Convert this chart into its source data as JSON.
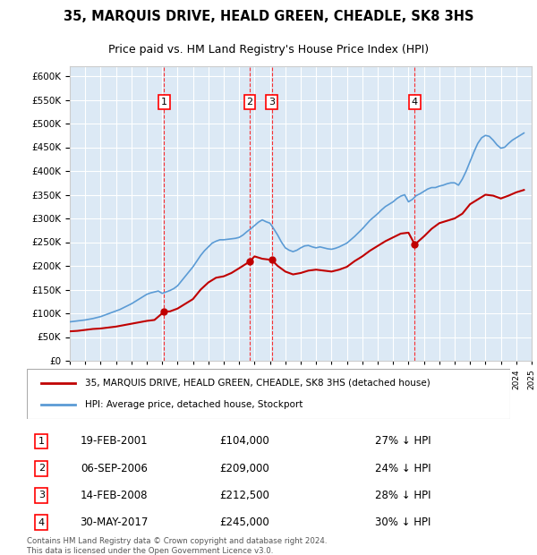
{
  "title": "35, MARQUIS DRIVE, HEALD GREEN, CHEADLE, SK8 3HS",
  "subtitle": "Price paid vs. HM Land Registry's House Price Index (HPI)",
  "ylim": [
    0,
    620000
  ],
  "yticks": [
    0,
    50000,
    100000,
    150000,
    200000,
    250000,
    300000,
    350000,
    400000,
    450000,
    500000,
    550000,
    600000
  ],
  "xlabel_start_year": 1995,
  "xlabel_end_year": 2025,
  "background_color": "#dce9f5",
  "plot_bg_color": "#dce9f5",
  "hpi_line_color": "#5b9bd5",
  "price_line_color": "#c00000",
  "grid_color": "#ffffff",
  "sale_dates": [
    "2001-02-19",
    "2006-09-06",
    "2008-02-14",
    "2017-05-30"
  ],
  "sale_prices": [
    104000,
    209000,
    212500,
    245000
  ],
  "sale_labels": [
    "1",
    "2",
    "3",
    "4"
  ],
  "sale_hpi_pct": [
    "27% ↓ HPI",
    "24% ↓ HPI",
    "28% ↓ HPI",
    "30% ↓ HPI"
  ],
  "sale_dates_str": [
    "19-FEB-2001",
    "06-SEP-2006",
    "14-FEB-2008",
    "30-MAY-2017"
  ],
  "sale_prices_str": [
    "£104,000",
    "£209,000",
    "£212,500",
    "£245,000"
  ],
  "legend_line1": "35, MARQUIS DRIVE, HEALD GREEN, CHEADLE, SK8 3HS (detached house)",
  "legend_line2": "HPI: Average price, detached house, Stockport",
  "footer": "Contains HM Land Registry data © Crown copyright and database right 2024.\nThis data is licensed under the Open Government Licence v3.0.",
  "hpi_data_years": [
    1995.0,
    1995.25,
    1995.5,
    1995.75,
    1996.0,
    1996.25,
    1996.5,
    1996.75,
    1997.0,
    1997.25,
    1997.5,
    1997.75,
    1998.0,
    1998.25,
    1998.5,
    1998.75,
    1999.0,
    1999.25,
    1999.5,
    1999.75,
    2000.0,
    2000.25,
    2000.5,
    2000.75,
    2001.0,
    2001.25,
    2001.5,
    2001.75,
    2002.0,
    2002.25,
    2002.5,
    2002.75,
    2003.0,
    2003.25,
    2003.5,
    2003.75,
    2004.0,
    2004.25,
    2004.5,
    2004.75,
    2005.0,
    2005.25,
    2005.5,
    2005.75,
    2006.0,
    2006.25,
    2006.5,
    2006.75,
    2007.0,
    2007.25,
    2007.5,
    2007.75,
    2008.0,
    2008.25,
    2008.5,
    2008.75,
    2009.0,
    2009.25,
    2009.5,
    2009.75,
    2010.0,
    2010.25,
    2010.5,
    2010.75,
    2011.0,
    2011.25,
    2011.5,
    2011.75,
    2012.0,
    2012.25,
    2012.5,
    2012.75,
    2013.0,
    2013.25,
    2013.5,
    2013.75,
    2014.0,
    2014.25,
    2014.5,
    2014.75,
    2015.0,
    2015.25,
    2015.5,
    2015.75,
    2016.0,
    2016.25,
    2016.5,
    2016.75,
    2017.0,
    2017.25,
    2017.5,
    2017.75,
    2018.0,
    2018.25,
    2018.5,
    2018.75,
    2019.0,
    2019.25,
    2019.5,
    2019.75,
    2020.0,
    2020.25,
    2020.5,
    2020.75,
    2021.0,
    2021.25,
    2021.5,
    2021.75,
    2022.0,
    2022.25,
    2022.5,
    2022.75,
    2023.0,
    2023.25,
    2023.5,
    2023.75,
    2024.0,
    2024.25,
    2024.5
  ],
  "hpi_data_values": [
    82000,
    83000,
    84000,
    85000,
    86000,
    87500,
    89000,
    91000,
    93000,
    96000,
    99000,
    102000,
    105000,
    108000,
    112000,
    116000,
    120000,
    125000,
    130000,
    135000,
    140000,
    143000,
    145000,
    147000,
    142000,
    145000,
    148000,
    152000,
    158000,
    168000,
    178000,
    188000,
    198000,
    210000,
    222000,
    232000,
    240000,
    248000,
    252000,
    255000,
    255000,
    256000,
    257000,
    258000,
    260000,
    265000,
    272000,
    278000,
    285000,
    292000,
    297000,
    293000,
    290000,
    278000,
    265000,
    250000,
    238000,
    233000,
    230000,
    233000,
    238000,
    242000,
    243000,
    240000,
    238000,
    240000,
    238000,
    236000,
    235000,
    237000,
    240000,
    244000,
    248000,
    255000,
    262000,
    270000,
    278000,
    287000,
    296000,
    303000,
    310000,
    318000,
    325000,
    330000,
    335000,
    342000,
    347000,
    350000,
    335000,
    340000,
    348000,
    352000,
    357000,
    362000,
    365000,
    365000,
    368000,
    370000,
    373000,
    375000,
    375000,
    370000,
    383000,
    400000,
    420000,
    440000,
    458000,
    470000,
    475000,
    473000,
    465000,
    455000,
    448000,
    450000,
    458000,
    465000,
    470000,
    475000,
    480000
  ],
  "price_data_years": [
    1995.0,
    1995.5,
    1996.0,
    1996.5,
    1997.0,
    1997.5,
    1998.0,
    1998.5,
    1999.0,
    1999.5,
    2000.0,
    2000.5,
    2001.146,
    2001.5,
    2002.0,
    2002.5,
    2003.0,
    2003.5,
    2004.0,
    2004.5,
    2005.0,
    2005.5,
    2006.0,
    2006.68,
    2007.0,
    2007.5,
    2008.12,
    2008.5,
    2009.0,
    2009.5,
    2010.0,
    2010.5,
    2011.0,
    2011.5,
    2012.0,
    2012.5,
    2013.0,
    2013.5,
    2014.0,
    2014.5,
    2015.0,
    2015.5,
    2016.0,
    2016.5,
    2017.0,
    2017.41,
    2018.0,
    2018.5,
    2019.0,
    2019.5,
    2020.0,
    2020.5,
    2021.0,
    2021.5,
    2022.0,
    2022.5,
    2023.0,
    2023.5,
    2024.0,
    2024.5
  ],
  "price_data_values": [
    62000,
    63000,
    65000,
    67000,
    68000,
    70000,
    72000,
    75000,
    78000,
    81000,
    84000,
    86000,
    104000,
    104000,
    110000,
    120000,
    130000,
    150000,
    165000,
    175000,
    178000,
    185000,
    195000,
    209000,
    220000,
    215000,
    212500,
    200000,
    188000,
    182000,
    185000,
    190000,
    192000,
    190000,
    188000,
    192000,
    198000,
    210000,
    220000,
    232000,
    242000,
    252000,
    260000,
    268000,
    270000,
    245000,
    262000,
    278000,
    290000,
    295000,
    300000,
    310000,
    330000,
    340000,
    350000,
    348000,
    342000,
    348000,
    355000,
    360000
  ]
}
